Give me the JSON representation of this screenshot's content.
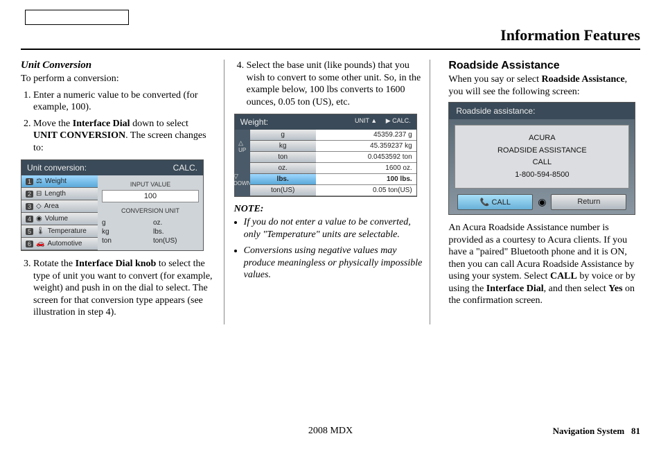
{
  "page_title": "Information Features",
  "col1": {
    "heading": "Unit Conversion",
    "intro": "To perform a conversion:",
    "steps": [
      "Enter a numeric value to be converted (for example, 100).",
      "Move the <b>Interface Dial</b> down to select <b>UNIT CONVERSION</b>. The screen changes to:",
      "Rotate the <b>Interface Dial knob</b> to select the type of unit you want to convert (for example, weight) and push in on the dial to select. The screen for that conversion type appears (see illustration in step 4)."
    ],
    "screen": {
      "title": "Unit conversion:",
      "calc": "CALC.",
      "items": [
        {
          "num": "1",
          "icon": "⚖",
          "label": "Weight"
        },
        {
          "num": "2",
          "icon": "⊟",
          "label": "Length"
        },
        {
          "num": "3",
          "icon": "◇",
          "label": "Area"
        },
        {
          "num": "4",
          "icon": "◉",
          "label": "Volume"
        },
        {
          "num": "5",
          "icon": "🌡",
          "label": "Temperature"
        },
        {
          "num": "6",
          "icon": "🚗",
          "label": "Automotive"
        }
      ],
      "input_label": "INPUT VALUE",
      "input_value": "100",
      "conv_label": "CONVERSION UNIT",
      "units": [
        "g",
        "oz.",
        "kg",
        "lbs.",
        "ton",
        "ton(US)"
      ]
    }
  },
  "col2": {
    "step4": "Select the base unit (like pounds) that you wish to convert to some other unit. So, in the example below, 100 lbs converts to 1600 ounces, 0.05 ton (US), etc.",
    "screen": {
      "title": "Weight:",
      "unit_btn": "UNIT ▲",
      "calc_btn": "▶ CALC.",
      "left_units": [
        "g",
        "kg",
        "ton",
        "oz.",
        "lbs.",
        "ton(US)"
      ],
      "selected_idx": 4,
      "right_vals": [
        "45359.237 g",
        "45.359237 kg",
        "0.0453592 ton",
        "1600 oz.",
        "100 lbs.",
        "0.05 ton(US)"
      ]
    },
    "note_label": "NOTE:",
    "notes": [
      "If you do not enter a value to be converted, only \"Temperature\" units are selectable.",
      "Conversions using negative values may produce meaningless or physically impossible values."
    ]
  },
  "col3": {
    "heading": "Roadside Assistance",
    "intro_pre": "When you say or select ",
    "intro_bold": "Roadside Assistance",
    "intro_post": ", you will see the following screen:",
    "screen": {
      "title": "Roadside assistance:",
      "line1": "ACURA",
      "line2": "ROADSIDE  ASSISTANCE",
      "line3": "CALL",
      "line4": "1-800-594-8500",
      "call": "CALL",
      "return": "Return"
    },
    "body_pre": "An Acura Roadside Assistance number is provided as a courtesy to Acura clients. If you have a \"paired\" Bluetooth phone and it is ON, then you can call Acura Roadside Assistance by using your system. Select ",
    "body_b1": "CALL",
    "body_mid": " by voice or by using the ",
    "body_b2": "Interface Dial",
    "body_mid2": ", and then select ",
    "body_b3": "Yes",
    "body_post": " on the confirmation screen."
  },
  "footer": {
    "model": "2008  MDX",
    "sys": "Navigation System",
    "page": "81"
  }
}
